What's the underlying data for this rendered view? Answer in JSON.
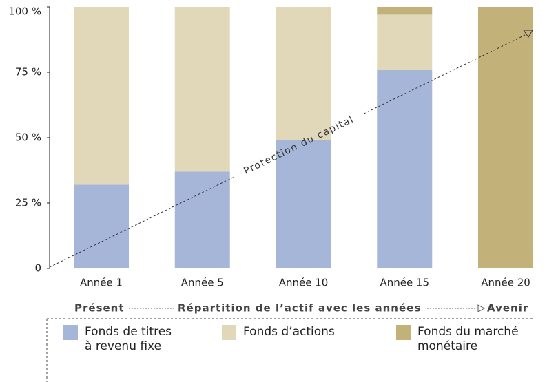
{
  "chart_data": {
    "type": "bar",
    "stacked": true,
    "categories": [
      "Année 1",
      "Année 5",
      "Année 10",
      "Année 15",
      "Année 20"
    ],
    "series": [
      {
        "name": "Fonds de titres à revenu fixe",
        "color": "#a6b6d8",
        "values": [
          32,
          37,
          49,
          76,
          0
        ]
      },
      {
        "name": "Fonds d’actions",
        "color": "#e0d8b8",
        "values": [
          68,
          63,
          51,
          21,
          0
        ]
      },
      {
        "name": "Fonds du marché monétaire",
        "color": "#c2b27a",
        "values": [
          0,
          0,
          0,
          3,
          100
        ]
      }
    ],
    "ylim": [
      0,
      100
    ],
    "yticks": [
      0,
      {
        "value": 25,
        "label": "25 %"
      },
      {
        "value": 50,
        "label": "50 %"
      },
      {
        "value": 75,
        "label": "75 %"
      },
      {
        "value": 100,
        "label": "100 %"
      }
    ],
    "annotation": "Protection du capital",
    "present_label": "Présent",
    "xlabel": "Répartition de l’actif avec les années",
    "future_label": "Avenir"
  }
}
